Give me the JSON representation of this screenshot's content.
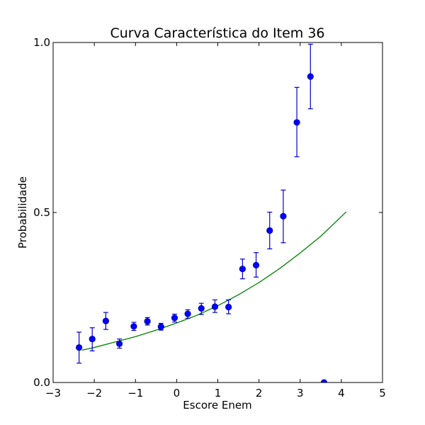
{
  "chart_data": {
    "type": "scatter",
    "title": "Curva Característica do Item 36",
    "xlabel": "Escore Enem",
    "ylabel": "Probabilidade",
    "xlim": [
      -3,
      5
    ],
    "ylim": [
      0.0,
      1.0
    ],
    "xticks": [
      -3,
      -2,
      -1,
      0,
      1,
      2,
      3,
      4,
      5
    ],
    "xtick_labels": [
      "−3",
      "−2",
      "−1",
      "0",
      "1",
      "2",
      "3",
      "4",
      "5"
    ],
    "yticks": [
      0.0,
      0.5,
      1.0
    ],
    "ytick_labels": [
      "0.0",
      "0.5",
      "1.0"
    ],
    "grid": false,
    "colors": {
      "points": "#0000ff",
      "errorbars": "#0000cc",
      "curve": "#008000"
    },
    "series": [
      {
        "kind": "points_with_errorbars",
        "x": [
          -2.37,
          -2.05,
          -1.72,
          -1.39,
          -1.04,
          -0.71,
          -0.38,
          -0.05,
          0.27,
          0.6,
          0.93,
          1.26,
          1.6,
          1.93,
          2.26,
          2.59,
          2.92,
          3.25,
          3.58
        ],
        "y": [
          0.103,
          0.128,
          0.181,
          0.114,
          0.165,
          0.18,
          0.164,
          0.19,
          0.202,
          0.218,
          0.223,
          0.222,
          0.334,
          0.345,
          0.447,
          0.489,
          0.765,
          0.9,
          0.0
        ],
        "yerr_low": [
          0.057,
          0.093,
          0.156,
          0.101,
          0.153,
          0.169,
          0.154,
          0.178,
          0.189,
          0.2,
          0.206,
          0.202,
          0.305,
          0.31,
          0.393,
          0.411,
          0.664,
          0.805,
          0.0
        ],
        "yerr_high": [
          0.148,
          0.161,
          0.206,
          0.128,
          0.177,
          0.191,
          0.174,
          0.201,
          0.214,
          0.233,
          0.243,
          0.243,
          0.363,
          0.382,
          0.501,
          0.566,
          0.868,
          0.995,
          0.0
        ]
      },
      {
        "kind": "curve",
        "x": [
          -2.3,
          -2.0,
          -1.5,
          -1.0,
          -0.5,
          0.0,
          0.5,
          1.0,
          1.5,
          2.0,
          2.5,
          3.0,
          3.5,
          4.12
        ],
        "y": [
          0.095,
          0.103,
          0.119,
          0.135,
          0.154,
          0.175,
          0.198,
          0.226,
          0.258,
          0.294,
          0.335,
          0.381,
          0.43,
          0.502
        ]
      }
    ]
  }
}
